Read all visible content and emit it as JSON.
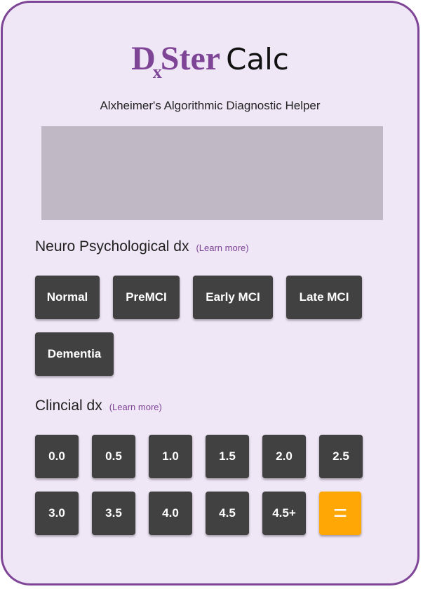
{
  "logo": {
    "dx_main": "D",
    "dx_sub": "x",
    "ster": "Ster",
    "calc": "Calc"
  },
  "subtitle": "Alxheimer's Algorithmic Diagnostic Helper",
  "display": {
    "value": ""
  },
  "neuro": {
    "heading": "Neuro Psychological dx",
    "learn_more": "(Learn more)",
    "buttons": [
      "Normal",
      "PreMCI",
      "Early MCI",
      "Late MCI",
      "Dementia"
    ]
  },
  "clinical": {
    "heading": "Clincial dx",
    "learn_more": "(Learn more)",
    "buttons": [
      "0.0",
      "0.5",
      "1.0",
      "1.5",
      "2.0",
      "2.5",
      "3.0",
      "3.5",
      "4.0",
      "4.5",
      "4.5+"
    ]
  },
  "equals_label": "=",
  "colors": {
    "accent": "#7e4597",
    "background": "#efe6f6",
    "button": "#414141",
    "equals": "#ffa705",
    "display": "#c1b8c5"
  }
}
